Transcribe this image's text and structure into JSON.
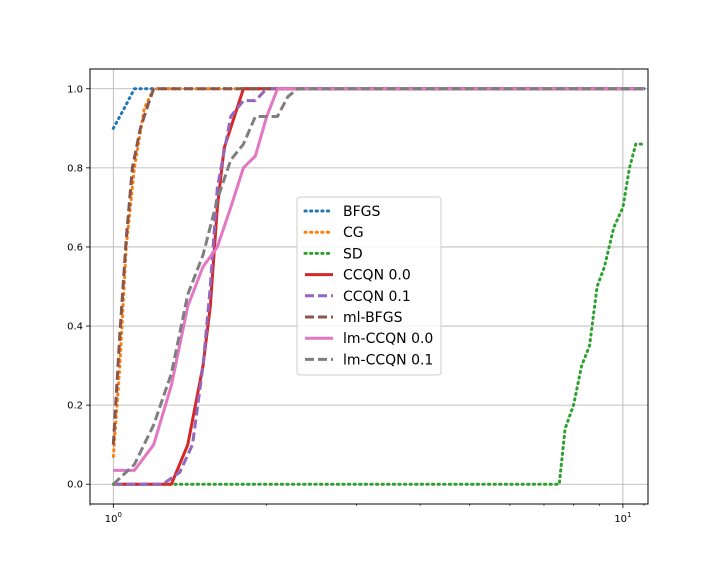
{
  "chart_data": {
    "type": "line",
    "title": "",
    "xlabel": "",
    "ylabel": "",
    "xscale": "log",
    "xlim": [
      0.9,
      11.2
    ],
    "ylim": [
      -0.05,
      1.05
    ],
    "grid": true,
    "legend_position": "center",
    "x_ticks": [
      {
        "value": 1,
        "label_base": "10",
        "label_exp": "0"
      },
      {
        "value": 10,
        "label_base": "10",
        "label_exp": "1"
      }
    ],
    "y_ticks": [
      {
        "value": 0.0,
        "label": "0.0"
      },
      {
        "value": 0.2,
        "label": "0.2"
      },
      {
        "value": 0.4,
        "label": "0.4"
      },
      {
        "value": 0.6,
        "label": "0.6"
      },
      {
        "value": 0.8,
        "label": "0.8"
      },
      {
        "value": 1.0,
        "label": "1.0"
      }
    ],
    "series": [
      {
        "name": "BFGS",
        "color": "#1f77b4",
        "dash": "dot",
        "points": [
          [
            1.0,
            0.9
          ],
          [
            1.05,
            0.95
          ],
          [
            1.1,
            1.0
          ],
          [
            11.0,
            1.0
          ]
        ]
      },
      {
        "name": "CG",
        "color": "#ff7f0e",
        "dash": "dot",
        "points": [
          [
            1.0,
            0.07
          ],
          [
            1.03,
            0.3
          ],
          [
            1.06,
            0.6
          ],
          [
            1.1,
            0.8
          ],
          [
            1.15,
            0.95
          ],
          [
            1.2,
            1.0
          ],
          [
            11.0,
            1.0
          ]
        ]
      },
      {
        "name": "SD",
        "color": "#2ca02c",
        "dash": "dot",
        "points": [
          [
            1.0,
            0.0
          ],
          [
            7.5,
            0.0
          ],
          [
            7.7,
            0.14
          ],
          [
            8.0,
            0.2
          ],
          [
            8.3,
            0.3
          ],
          [
            8.6,
            0.35
          ],
          [
            8.9,
            0.5
          ],
          [
            9.2,
            0.55
          ],
          [
            9.6,
            0.65
          ],
          [
            10.0,
            0.7
          ],
          [
            10.3,
            0.8
          ],
          [
            10.6,
            0.86
          ],
          [
            11.0,
            0.86
          ]
        ]
      },
      {
        "name": "CCQN 0.0",
        "color": "#d62728",
        "dash": "solid",
        "points": [
          [
            1.0,
            0.0
          ],
          [
            1.3,
            0.0
          ],
          [
            1.4,
            0.1
          ],
          [
            1.5,
            0.3
          ],
          [
            1.55,
            0.45
          ],
          [
            1.6,
            0.7
          ],
          [
            1.65,
            0.85
          ],
          [
            1.8,
            1.0
          ],
          [
            11.0,
            1.0
          ]
        ]
      },
      {
        "name": "CCQN 0.1",
        "color": "#9467bd",
        "dash": "dash",
        "points": [
          [
            1.0,
            0.0
          ],
          [
            1.25,
            0.0
          ],
          [
            1.35,
            0.03
          ],
          [
            1.43,
            0.1
          ],
          [
            1.5,
            0.3
          ],
          [
            1.55,
            0.5
          ],
          [
            1.6,
            0.75
          ],
          [
            1.7,
            0.93
          ],
          [
            1.8,
            0.97
          ],
          [
            1.9,
            0.97
          ],
          [
            2.0,
            1.0
          ],
          [
            11.0,
            1.0
          ]
        ]
      },
      {
        "name": "ml-BFGS",
        "color": "#8c564b",
        "dash": "dash",
        "points": [
          [
            1.0,
            0.1
          ],
          [
            1.03,
            0.38
          ],
          [
            1.06,
            0.62
          ],
          [
            1.09,
            0.8
          ],
          [
            1.13,
            0.9
          ],
          [
            1.17,
            0.96
          ],
          [
            1.2,
            1.0
          ],
          [
            11.0,
            1.0
          ]
        ]
      },
      {
        "name": "lm-CCQN 0.0",
        "color": "#e377c2",
        "dash": "solid",
        "points": [
          [
            1.0,
            0.035
          ],
          [
            1.1,
            0.035
          ],
          [
            1.2,
            0.1
          ],
          [
            1.3,
            0.25
          ],
          [
            1.4,
            0.45
          ],
          [
            1.5,
            0.55
          ],
          [
            1.6,
            0.6
          ],
          [
            1.7,
            0.7
          ],
          [
            1.8,
            0.8
          ],
          [
            1.9,
            0.83
          ],
          [
            2.0,
            0.93
          ],
          [
            2.1,
            1.0
          ],
          [
            11.0,
            1.0
          ]
        ]
      },
      {
        "name": "lm-CCQN 0.1",
        "color": "#7f7f7f",
        "dash": "dash",
        "points": [
          [
            1.0,
            0.0
          ],
          [
            1.1,
            0.05
          ],
          [
            1.2,
            0.15
          ],
          [
            1.3,
            0.28
          ],
          [
            1.4,
            0.48
          ],
          [
            1.5,
            0.58
          ],
          [
            1.6,
            0.72
          ],
          [
            1.7,
            0.82
          ],
          [
            1.8,
            0.86
          ],
          [
            1.9,
            0.93
          ],
          [
            2.0,
            0.93
          ],
          [
            2.1,
            0.93
          ],
          [
            2.2,
            0.98
          ],
          [
            2.3,
            1.0
          ],
          [
            11.0,
            1.0
          ]
        ]
      }
    ]
  }
}
